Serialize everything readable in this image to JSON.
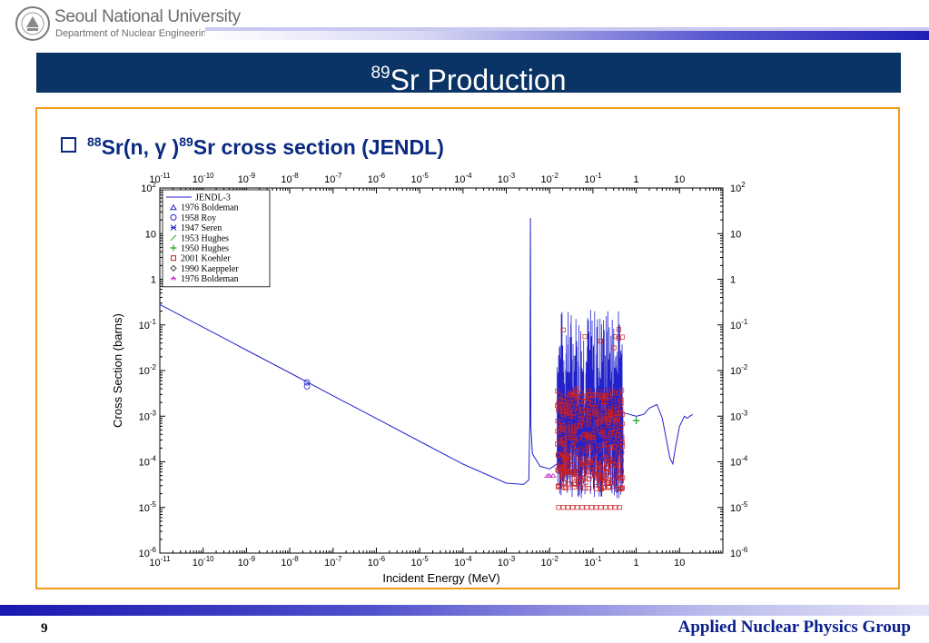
{
  "header": {
    "university": "Seoul National University",
    "department": "Department of Nuclear Engineering",
    "title_sup": "89",
    "title_text": "Sr Production"
  },
  "bullet": {
    "sup1": "88",
    "part1": "Sr(n, γ )",
    "sup2": "89",
    "part2": "Sr cross section (JENDL)"
  },
  "footer": {
    "page_number": "9",
    "group": "Applied Nuclear Physics Group"
  },
  "colors": {
    "title_bar": "#0a3366",
    "box_border": "#f29c1c",
    "jendl_line": "#2222cc",
    "koehler_marker": "#cc2020"
  },
  "chart_data": {
    "type": "line",
    "x_scale": "log",
    "y_scale": "log",
    "xlim": [
      1e-11,
      100
    ],
    "ylim": [
      1e-06,
      100
    ],
    "xlabel": "Incident Energy (MeV)",
    "ylabel": "Cross Section (barns)",
    "x_ticks": [
      {
        "v": -11,
        "l": "10",
        "e": "-11"
      },
      {
        "v": -10,
        "l": "10",
        "e": "-10"
      },
      {
        "v": -9,
        "l": "10",
        "e": "-9"
      },
      {
        "v": -8,
        "l": "10",
        "e": "-8"
      },
      {
        "v": -7,
        "l": "10",
        "e": "-7"
      },
      {
        "v": -6,
        "l": "10",
        "e": "-6"
      },
      {
        "v": -5,
        "l": "10",
        "e": "-5"
      },
      {
        "v": -4,
        "l": "10",
        "e": "-4"
      },
      {
        "v": -3,
        "l": "10",
        "e": "-3"
      },
      {
        "v": -2,
        "l": "10",
        "e": "-2"
      },
      {
        "v": -1,
        "l": "10",
        "e": "-1"
      },
      {
        "v": 0,
        "l": "1",
        "e": ""
      },
      {
        "v": 1,
        "l": "10",
        "e": ""
      }
    ],
    "y_ticks": [
      {
        "v": 2,
        "l": "10",
        "e": "2"
      },
      {
        "v": 1,
        "l": "10",
        "e": ""
      },
      {
        "v": 0,
        "l": "1",
        "e": ""
      },
      {
        "v": -1,
        "l": "10",
        "e": "-1"
      },
      {
        "v": -2,
        "l": "10",
        "e": "-2"
      },
      {
        "v": -3,
        "l": "10",
        "e": "-3"
      },
      {
        "v": -4,
        "l": "10",
        "e": "-4"
      },
      {
        "v": -5,
        "l": "10",
        "e": "-5"
      },
      {
        "v": -6,
        "l": "10",
        "e": "-6"
      }
    ],
    "legend_position": "top-left",
    "legend": [
      {
        "name": "JENDL-3",
        "marker": "line",
        "color": "#2222cc"
      },
      {
        "name": "1976 Boldeman",
        "marker": "triangle",
        "color": "#2222cc"
      },
      {
        "name": "1958 Roy",
        "marker": "circle",
        "color": "#2222cc"
      },
      {
        "name": "1947 Seren",
        "marker": "star",
        "color": "#2222cc"
      },
      {
        "name": "1953 Hughes",
        "marker": "slash",
        "color": "#20a020"
      },
      {
        "name": "1950 Hughes",
        "marker": "plus",
        "color": "#20a020"
      },
      {
        "name": "2001 Koehler",
        "marker": "square",
        "color": "#cc2020"
      },
      {
        "name": "1990 Kaeppeler",
        "marker": "diamond",
        "color": "#444444"
      },
      {
        "name": "1976 Boldeman",
        "marker": "dash-tri",
        "color": "#cc20cc"
      }
    ],
    "series": [
      {
        "name": "JENDL-3",
        "points": [
          [
            1e-11,
            0.28
          ],
          [
            1e-10,
            0.089
          ],
          [
            1e-09,
            0.028
          ],
          [
            1e-08,
            0.0089
          ],
          [
            1e-07,
            0.0028
          ],
          [
            1e-06,
            0.00089
          ],
          [
            1e-05,
            0.00028
          ],
          [
            0.0001,
            8.9e-05
          ],
          [
            0.001,
            3.4e-05
          ],
          [
            0.0025,
            3.2e-05
          ],
          [
            0.0033,
            4e-05
          ],
          [
            0.0035,
            0.0008
          ],
          [
            0.0036,
            22
          ],
          [
            0.0037,
            0.0006
          ],
          [
            0.004,
            0.00015
          ],
          [
            0.006,
            8e-05
          ],
          [
            0.01,
            7e-05
          ],
          [
            0.015,
            9e-05
          ],
          [
            0.5,
            0.0012
          ],
          [
            1,
            0.001
          ],
          [
            1.5,
            0.0011
          ],
          [
            2,
            0.0015
          ],
          [
            3,
            0.0018
          ],
          [
            4,
            0.0009
          ],
          [
            6,
            0.00012
          ],
          [
            7,
            9e-05
          ],
          [
            8,
            0.0002
          ],
          [
            10,
            0.0006
          ],
          [
            13,
            0.001
          ],
          [
            15,
            0.0009
          ],
          [
            20,
            0.0011
          ]
        ],
        "resonance_band": [
          0.015,
          0.5
        ]
      },
      {
        "name": "1958 Roy",
        "points": [
          [
            2.5e-08,
            0.0055
          ],
          [
            2.5e-08,
            0.0045
          ]
        ]
      },
      {
        "name": "1950 Hughes",
        "points": [
          [
            1,
            0.0008
          ]
        ]
      },
      {
        "name": "1976 Boldeman",
        "points": [
          [
            0.009,
            5e-05
          ],
          [
            0.01,
            5e-05
          ],
          [
            0.012,
            5e-05
          ]
        ]
      }
    ]
  }
}
